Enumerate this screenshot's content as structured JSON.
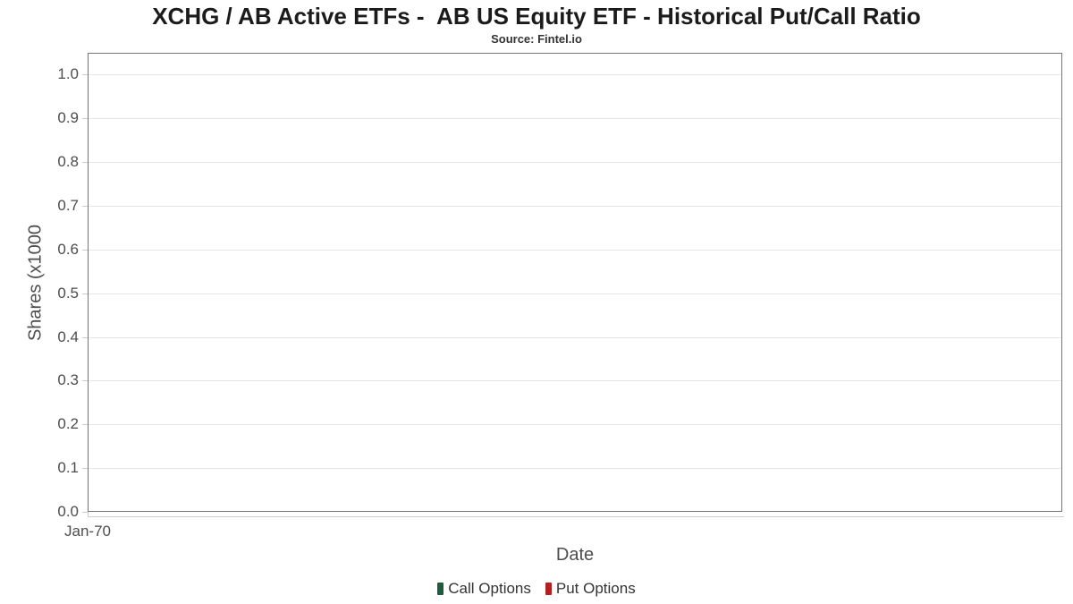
{
  "chart_data": {
    "type": "line",
    "title": "XCHG / AB Active ETFs -  AB US Equity ETF - Historical Put/Call Ratio",
    "subtitle": "Source: Fintel.io",
    "xlabel": "Date",
    "ylabel": "Shares (x1000",
    "x_tick_labels": [
      "Jan-70"
    ],
    "y_tick_labels": [
      "0.0",
      "0.1",
      "0.2",
      "0.3",
      "0.4",
      "0.5",
      "0.6",
      "0.7",
      "0.8",
      "0.9",
      "1.0"
    ],
    "ylim": [
      0,
      1.05
    ],
    "grid": "horizontal-only",
    "legend_position": "bottom-center",
    "plot_empty": true,
    "series": [
      {
        "name": "Call Options",
        "color": "#1d5c3c",
        "values": []
      },
      {
        "name": "Put Options",
        "color": "#b22020",
        "values": []
      }
    ],
    "colors": {
      "plot_border": "#757575",
      "gridline": "#e6e6e6",
      "axis_line": "#cccccc",
      "tick_label": "#4d4d4d",
      "title": "#1b1b1b"
    }
  }
}
